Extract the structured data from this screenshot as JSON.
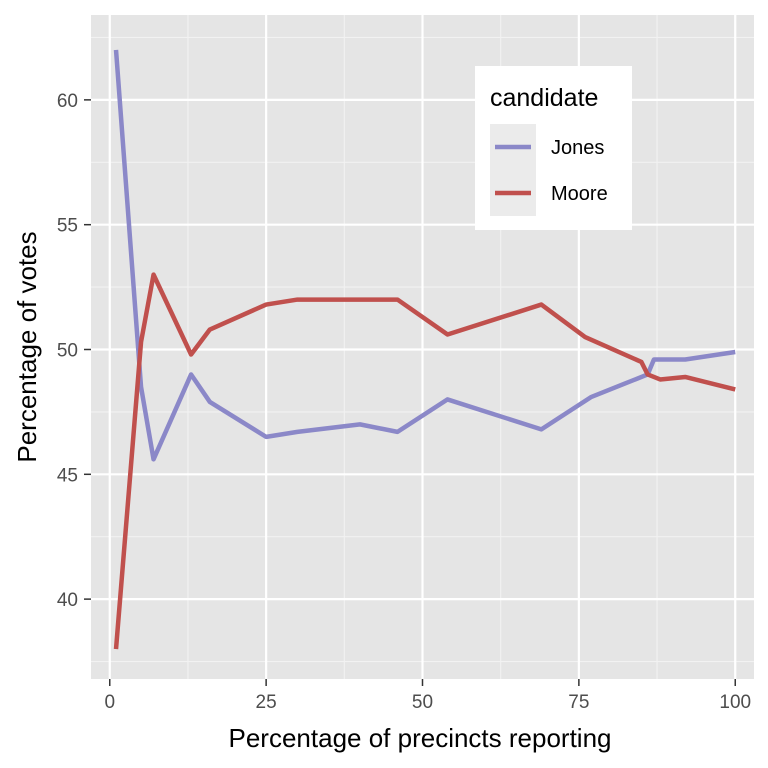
{
  "chart_data": {
    "type": "line",
    "xlabel": "Percentage of precincts reporting",
    "ylabel": "Percentage of votes",
    "xlim": [
      -3,
      103
    ],
    "ylim": [
      36.8,
      63.4
    ],
    "xticks": [
      0,
      25,
      50,
      75,
      100
    ],
    "xtick_labels": [
      "0",
      "25",
      "50",
      "75",
      "100"
    ],
    "yticks": [
      40,
      45,
      50,
      55,
      60
    ],
    "ytick_labels": [
      "40",
      "45",
      "50",
      "55",
      "60"
    ],
    "grid": true,
    "legend": {
      "title": "candidate",
      "placement": "top-right"
    },
    "series": [
      {
        "name": "Jones",
        "color": "#8b88c8",
        "x": [
          1,
          5,
          7,
          13,
          16,
          25,
          30,
          40,
          46,
          54,
          69,
          77,
          86,
          87,
          92,
          100
        ],
        "y": [
          62,
          48.5,
          45.6,
          49,
          47.9,
          46.5,
          46.7,
          47,
          46.7,
          48,
          46.8,
          48.1,
          49,
          49.6,
          49.6,
          49.9
        ]
      },
      {
        "name": "Moore",
        "color": "#c0504d",
        "x": [
          1,
          5,
          7,
          13,
          16,
          25,
          30,
          40,
          46,
          54,
          69,
          76,
          85,
          86,
          88,
          92,
          100
        ],
        "y": [
          38,
          50.3,
          53,
          49.8,
          50.8,
          51.8,
          52,
          52,
          52,
          50.6,
          51.8,
          50.5,
          49.5,
          49,
          48.8,
          48.9,
          48.4
        ]
      }
    ]
  }
}
